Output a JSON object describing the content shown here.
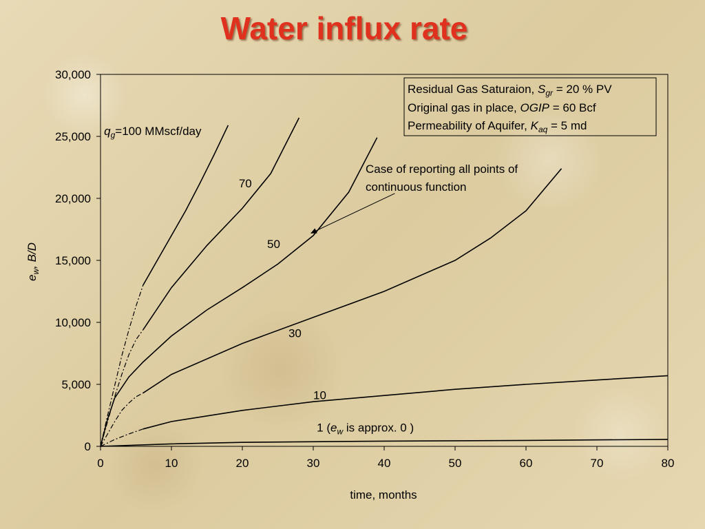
{
  "slide": {
    "title": "Water influx rate"
  },
  "chart_data": {
    "type": "line",
    "xlabel": "time, months",
    "ylabel_main": "e",
    "ylabel_sub": "w",
    "ylabel_unit": ", B/D",
    "xlim": [
      0,
      80
    ],
    "ylim": [
      0,
      30000
    ],
    "xticks": [
      0,
      10,
      20,
      30,
      40,
      50,
      60,
      70,
      80
    ],
    "yticks": [
      0,
      5000,
      10000,
      15000,
      20000,
      25000,
      30000
    ],
    "ytick_labels": [
      "0",
      "5,000",
      "10,000",
      "15,000",
      "20,000",
      "25,000",
      "30,000"
    ],
    "grid": false,
    "legend_box": {
      "lines": [
        {
          "pre": "Residual Gas Saturaion, ",
          "sym": "S",
          "sub": "gr",
          "post": " = 20 % PV"
        },
        {
          "pre": "Original gas in place, ",
          "sym": "OGIP",
          "sub": "",
          "post": " = 60 Bcf"
        },
        {
          "pre": "Permeability of Aquifer, ",
          "sym": "K",
          "sub": "aq",
          "post": "  = 5 md"
        }
      ]
    },
    "annotation": {
      "text_line1": "Case of reporting all points of",
      "text_line2": "continuous function",
      "arrow_from": [
        41.5,
        20400
      ],
      "arrow_to": [
        29.7,
        17200
      ]
    },
    "series": [
      {
        "name": "100",
        "label_pre": "q",
        "label_sub": "g",
        "label_post": "=100 MMscf/day",
        "label_at": [
          0.5,
          25100
        ],
        "dashed": [
          [
            0,
            0
          ],
          [
            1,
            2500
          ],
          [
            2,
            4900
          ],
          [
            3,
            7300
          ],
          [
            4,
            9400
          ],
          [
            5,
            11300
          ],
          [
            6,
            13000
          ]
        ],
        "solid": [
          [
            6,
            13000
          ],
          [
            8,
            15000
          ],
          [
            10,
            17000
          ],
          [
            12,
            19000
          ],
          [
            14,
            21200
          ],
          [
            16,
            23500
          ],
          [
            18,
            25900
          ]
        ]
      },
      {
        "name": "70",
        "label_at": [
          19.5,
          20900
        ],
        "dashed": [
          [
            0,
            0
          ],
          [
            1,
            2000
          ],
          [
            2,
            4000
          ],
          [
            3,
            5800
          ],
          [
            4,
            7400
          ],
          [
            5,
            8600
          ],
          [
            6,
            9400
          ]
        ],
        "solid": [
          [
            6,
            9400
          ],
          [
            10,
            12800
          ],
          [
            15,
            16200
          ],
          [
            20,
            19200
          ],
          [
            24,
            22000
          ],
          [
            28,
            26500
          ]
        ]
      },
      {
        "name": "50",
        "label_at": [
          23.5,
          16000
        ],
        "solid": [
          [
            0,
            0
          ],
          [
            1,
            2200
          ],
          [
            2,
            3900
          ],
          [
            4,
            5600
          ],
          [
            6,
            6800
          ],
          [
            10,
            8900
          ],
          [
            15,
            11000
          ],
          [
            20,
            12800
          ],
          [
            25,
            14700
          ],
          [
            30,
            17000
          ],
          [
            35,
            20500
          ],
          [
            39,
            24900
          ]
        ]
      },
      {
        "name": "30",
        "label_at": [
          26.5,
          8800
        ],
        "dashed": [
          [
            0,
            0
          ],
          [
            1,
            1000
          ],
          [
            2,
            2000
          ],
          [
            3,
            2900
          ],
          [
            4,
            3500
          ],
          [
            5,
            4000
          ],
          [
            6,
            4300
          ]
        ],
        "solid": [
          [
            6,
            4300
          ],
          [
            10,
            5800
          ],
          [
            20,
            8300
          ],
          [
            30,
            10400
          ],
          [
            40,
            12500
          ],
          [
            50,
            15000
          ],
          [
            55,
            16800
          ],
          [
            60,
            19000
          ],
          [
            65,
            22400
          ]
        ]
      },
      {
        "name": "10",
        "label_at": [
          30,
          3800
        ],
        "dashed": [
          [
            0,
            0
          ],
          [
            2,
            550
          ],
          [
            4,
            1000
          ],
          [
            6,
            1400
          ]
        ],
        "solid": [
          [
            6,
            1400
          ],
          [
            10,
            2000
          ],
          [
            20,
            2900
          ],
          [
            30,
            3600
          ],
          [
            40,
            4100
          ],
          [
            50,
            4600
          ],
          [
            60,
            5000
          ],
          [
            70,
            5350
          ],
          [
            80,
            5700
          ]
        ]
      },
      {
        "name": "1",
        "label_at": [
          30.5,
          1200
        ],
        "label_note_pre": "(",
        "label_note_sym": "e",
        "label_note_sub": "w",
        "label_note_post": " is approx. 0 )",
        "solid": [
          [
            0,
            0
          ],
          [
            10,
            200
          ],
          [
            20,
            320
          ],
          [
            40,
            420
          ],
          [
            60,
            480
          ],
          [
            80,
            560
          ]
        ]
      }
    ]
  }
}
